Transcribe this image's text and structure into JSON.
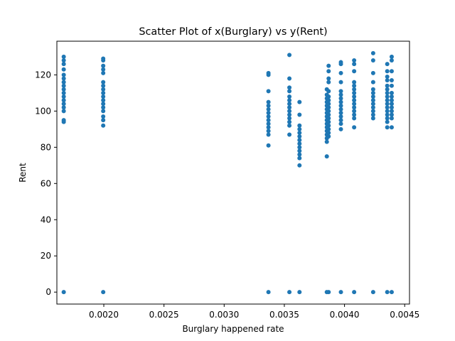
{
  "chart_data": {
    "type": "scatter",
    "title": "Scatter Plot of x(Burglary) vs y(Rent)",
    "xlabel": "Burglary happened rate",
    "ylabel": "Rent",
    "xlim": [
      0.00161,
      0.00454
    ],
    "ylim": [
      -6.6,
      138.6
    ],
    "x_ticks": [
      0.002,
      0.0025,
      0.003,
      0.0035,
      0.004,
      0.0045
    ],
    "x_tick_labels": [
      "0.0020",
      "0.0025",
      "0.0030",
      "0.0035",
      "0.0040",
      "0.0045"
    ],
    "y_ticks": [
      0,
      20,
      40,
      60,
      80,
      100,
      120
    ],
    "y_tick_labels": [
      "0",
      "20",
      "40",
      "60",
      "80",
      "100",
      "120"
    ],
    "grid": false,
    "marker_color": "#1f77b4",
    "series": [
      {
        "points": [
          [
            0.001667,
            0
          ],
          [
            0.001667,
            94
          ],
          [
            0.001667,
            95
          ],
          [
            0.001667,
            100
          ],
          [
            0.001667,
            102
          ],
          [
            0.001667,
            104
          ],
          [
            0.001667,
            106
          ],
          [
            0.001667,
            108
          ],
          [
            0.001667,
            110
          ],
          [
            0.001667,
            112
          ],
          [
            0.001667,
            114
          ],
          [
            0.001667,
            116
          ],
          [
            0.001667,
            118
          ],
          [
            0.001667,
            120
          ],
          [
            0.001667,
            123
          ],
          [
            0.001667,
            126
          ],
          [
            0.001667,
            128
          ],
          [
            0.001667,
            130
          ],
          [
            0.001995,
            0
          ],
          [
            0.001995,
            92
          ],
          [
            0.001995,
            95
          ],
          [
            0.001995,
            97
          ],
          [
            0.001995,
            100
          ],
          [
            0.001995,
            102
          ],
          [
            0.001995,
            104
          ],
          [
            0.001995,
            106
          ],
          [
            0.001995,
            108
          ],
          [
            0.001995,
            110
          ],
          [
            0.001995,
            112
          ],
          [
            0.001995,
            114
          ],
          [
            0.001995,
            116
          ],
          [
            0.001995,
            121
          ],
          [
            0.001995,
            123
          ],
          [
            0.001995,
            125
          ],
          [
            0.001995,
            128
          ],
          [
            0.001995,
            129
          ],
          [
            0.003368,
            0
          ],
          [
            0.003368,
            81
          ],
          [
            0.003368,
            87
          ],
          [
            0.003368,
            89
          ],
          [
            0.003368,
            91
          ],
          [
            0.003368,
            93
          ],
          [
            0.003368,
            95
          ],
          [
            0.003368,
            97
          ],
          [
            0.003368,
            99
          ],
          [
            0.003368,
            101
          ],
          [
            0.003368,
            103
          ],
          [
            0.003368,
            105
          ],
          [
            0.003368,
            111
          ],
          [
            0.003368,
            120
          ],
          [
            0.003368,
            121
          ],
          [
            0.003542,
            0
          ],
          [
            0.003542,
            87
          ],
          [
            0.003542,
            92
          ],
          [
            0.003542,
            94
          ],
          [
            0.003542,
            96
          ],
          [
            0.003542,
            98
          ],
          [
            0.003542,
            100
          ],
          [
            0.003542,
            102
          ],
          [
            0.003542,
            104
          ],
          [
            0.003542,
            106
          ],
          [
            0.003542,
            108
          ],
          [
            0.003542,
            111
          ],
          [
            0.003542,
            113
          ],
          [
            0.003542,
            118
          ],
          [
            0.003542,
            131
          ],
          [
            0.003626,
            0
          ],
          [
            0.003626,
            70
          ],
          [
            0.003626,
            74
          ],
          [
            0.003626,
            76
          ],
          [
            0.003626,
            78
          ],
          [
            0.003626,
            80
          ],
          [
            0.003626,
            82
          ],
          [
            0.003626,
            84
          ],
          [
            0.003626,
            86
          ],
          [
            0.003626,
            88
          ],
          [
            0.003626,
            90
          ],
          [
            0.003626,
            92
          ],
          [
            0.003626,
            98
          ],
          [
            0.003626,
            105
          ],
          [
            0.003853,
            0
          ],
          [
            0.003853,
            75
          ],
          [
            0.003853,
            83
          ],
          [
            0.003853,
            85
          ],
          [
            0.003853,
            87
          ],
          [
            0.003853,
            89
          ],
          [
            0.003853,
            91
          ],
          [
            0.003853,
            93
          ],
          [
            0.003853,
            95
          ],
          [
            0.003853,
            97
          ],
          [
            0.003853,
            99
          ],
          [
            0.003853,
            101
          ],
          [
            0.003853,
            103
          ],
          [
            0.003853,
            105
          ],
          [
            0.003853,
            107
          ],
          [
            0.003853,
            109
          ],
          [
            0.003853,
            112
          ],
          [
            0.003868,
            0
          ],
          [
            0.003868,
            86
          ],
          [
            0.003868,
            88
          ],
          [
            0.003868,
            90
          ],
          [
            0.003868,
            92
          ],
          [
            0.003868,
            94
          ],
          [
            0.003868,
            96
          ],
          [
            0.003868,
            98
          ],
          [
            0.003868,
            100
          ],
          [
            0.003868,
            102
          ],
          [
            0.003868,
            104
          ],
          [
            0.003868,
            106
          ],
          [
            0.003868,
            108
          ],
          [
            0.003868,
            111
          ],
          [
            0.003868,
            116
          ],
          [
            0.003868,
            118
          ],
          [
            0.003868,
            122
          ],
          [
            0.003868,
            125
          ],
          [
            0.00397,
            0
          ],
          [
            0.00397,
            90
          ],
          [
            0.00397,
            93
          ],
          [
            0.00397,
            95
          ],
          [
            0.00397,
            97
          ],
          [
            0.00397,
            99
          ],
          [
            0.00397,
            101
          ],
          [
            0.00397,
            103
          ],
          [
            0.00397,
            105
          ],
          [
            0.00397,
            107
          ],
          [
            0.00397,
            109
          ],
          [
            0.00397,
            111
          ],
          [
            0.00397,
            116
          ],
          [
            0.00397,
            121
          ],
          [
            0.00397,
            126
          ],
          [
            0.00397,
            127
          ],
          [
            0.00408,
            0
          ],
          [
            0.00408,
            91
          ],
          [
            0.00408,
            96
          ],
          [
            0.00408,
            98
          ],
          [
            0.00408,
            100
          ],
          [
            0.00408,
            102
          ],
          [
            0.00408,
            104
          ],
          [
            0.00408,
            106
          ],
          [
            0.00408,
            108
          ],
          [
            0.00408,
            110
          ],
          [
            0.00408,
            112
          ],
          [
            0.00408,
            114
          ],
          [
            0.00408,
            116
          ],
          [
            0.00408,
            122
          ],
          [
            0.00408,
            126
          ],
          [
            0.00408,
            128
          ],
          [
            0.004238,
            0
          ],
          [
            0.004238,
            96
          ],
          [
            0.004238,
            98
          ],
          [
            0.004238,
            100
          ],
          [
            0.004238,
            102
          ],
          [
            0.004238,
            104
          ],
          [
            0.004238,
            106
          ],
          [
            0.004238,
            108
          ],
          [
            0.004238,
            110
          ],
          [
            0.004238,
            112
          ],
          [
            0.004238,
            116
          ],
          [
            0.004238,
            121
          ],
          [
            0.004238,
            128
          ],
          [
            0.004238,
            132
          ],
          [
            0.004355,
            0
          ],
          [
            0.004355,
            91
          ],
          [
            0.004355,
            94
          ],
          [
            0.004355,
            96
          ],
          [
            0.004355,
            98
          ],
          [
            0.004355,
            100
          ],
          [
            0.004355,
            102
          ],
          [
            0.004355,
            104
          ],
          [
            0.004355,
            106
          ],
          [
            0.004355,
            108
          ],
          [
            0.004355,
            110
          ],
          [
            0.004355,
            112
          ],
          [
            0.004355,
            114
          ],
          [
            0.004355,
            117
          ],
          [
            0.004355,
            119
          ],
          [
            0.004355,
            122
          ],
          [
            0.004355,
            126
          ],
          [
            0.004392,
            0
          ],
          [
            0.004392,
            91
          ],
          [
            0.004392,
            96
          ],
          [
            0.004392,
            98
          ],
          [
            0.004392,
            100
          ],
          [
            0.004392,
            102
          ],
          [
            0.004392,
            104
          ],
          [
            0.004392,
            106
          ],
          [
            0.004392,
            108
          ],
          [
            0.004392,
            110
          ],
          [
            0.004392,
            114
          ],
          [
            0.004392,
            117
          ],
          [
            0.004392,
            122
          ],
          [
            0.004392,
            128
          ],
          [
            0.004392,
            130
          ]
        ]
      }
    ]
  }
}
